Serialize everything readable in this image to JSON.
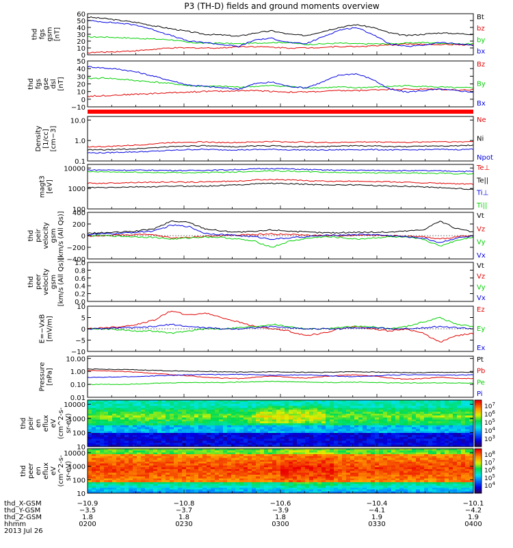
{
  "title": "P3 (TH-D) fields and ground moments overview",
  "colors": {
    "black": "#000000",
    "red": "#e00000",
    "green": "#00d000",
    "blue": "#0000e0"
  },
  "chart_data": [
    {
      "type": "line",
      "ylabel": [
        "thd",
        "fgs",
        "gsm",
        "[nT]"
      ],
      "ylim": [
        0,
        60
      ],
      "yticks": [
        "60",
        "50",
        "40",
        "30",
        "20",
        "10",
        "0"
      ],
      "series": [
        {
          "name": "Bt",
          "color": "black",
          "values": [
            55,
            53,
            50,
            47,
            42,
            38,
            34,
            30,
            29,
            27,
            32,
            35,
            30,
            28,
            34,
            40,
            44,
            40,
            32,
            28,
            30,
            32,
            31,
            30
          ]
        },
        {
          "name": "bz",
          "color": "red",
          "values": [
            3,
            4,
            5,
            6,
            8,
            10,
            10,
            10,
            10,
            12,
            12,
            11,
            10,
            10,
            11,
            12,
            12,
            13,
            14,
            16,
            15,
            15,
            15,
            14
          ]
        },
        {
          "name": "by",
          "color": "green",
          "values": [
            26,
            26,
            25,
            24,
            23,
            22,
            18,
            17,
            17,
            16,
            17,
            18,
            18,
            15,
            16,
            17,
            16,
            16,
            16,
            17,
            18,
            17,
            16,
            16
          ]
        },
        {
          "name": "bx",
          "color": "blue",
          "values": [
            50,
            48,
            46,
            43,
            36,
            28,
            20,
            18,
            15,
            12,
            22,
            24,
            18,
            16,
            26,
            36,
            40,
            30,
            16,
            12,
            14,
            18,
            16,
            14
          ]
        }
      ]
    },
    {
      "type": "line",
      "ylabel": [
        "thd",
        "fgs",
        "gse",
        "dsl",
        "[nT]"
      ],
      "ylim": [
        -15,
        50
      ],
      "yticks": [
        "50",
        "40",
        "30",
        "20",
        "10",
        "0",
        "−10"
      ],
      "series": [
        {
          "name": "Bz",
          "color": "red",
          "values": [
            0,
            1,
            2,
            3,
            4,
            5,
            6,
            7,
            7,
            8,
            8,
            7,
            6,
            6,
            7,
            8,
            8,
            9,
            10,
            10,
            10,
            10,
            9,
            9
          ]
        },
        {
          "name": "By",
          "color": "green",
          "values": [
            25,
            26,
            24,
            22,
            20,
            18,
            15,
            14,
            14,
            13,
            14,
            15,
            14,
            12,
            12,
            13,
            12,
            13,
            14,
            15,
            14,
            13,
            12,
            12
          ]
        },
        {
          "name": "Bx",
          "color": "blue",
          "values": [
            42,
            40,
            38,
            34,
            28,
            22,
            16,
            14,
            12,
            10,
            18,
            20,
            14,
            12,
            20,
            30,
            32,
            24,
            10,
            6,
            8,
            10,
            8,
            6
          ]
        }
      ]
    },
    {
      "type": "line",
      "ylabel": [
        "Density",
        "[1/cc]",
        "[cm−3]"
      ],
      "ylim": [
        0.1,
        15
      ],
      "log": true,
      "yticks": [
        "10.0",
        "1.0",
        "0.1"
      ],
      "series": [
        {
          "name": "Ne",
          "color": "red",
          "values": [
            0.5,
            0.5,
            0.55,
            0.6,
            0.7,
            0.8,
            0.85,
            0.85,
            0.8,
            0.8,
            0.85,
            0.9,
            0.85,
            0.85,
            0.8,
            0.8,
            0.85,
            0.85,
            0.85,
            0.8,
            0.85,
            0.9,
            0.85,
            0.9
          ]
        },
        {
          "name": "Ni",
          "color": "black",
          "values": [
            0.35,
            0.35,
            0.37,
            0.4,
            0.45,
            0.5,
            0.55,
            0.55,
            0.5,
            0.5,
            0.55,
            0.55,
            0.5,
            0.5,
            0.5,
            0.55,
            0.55,
            0.55,
            0.5,
            0.5,
            0.55,
            0.55,
            0.55,
            0.6
          ]
        },
        {
          "name": "Npot",
          "color": "blue",
          "values": [
            0.25,
            0.25,
            0.27,
            0.28,
            0.3,
            0.33,
            0.36,
            0.37,
            0.35,
            0.35,
            0.36,
            0.37,
            0.35,
            0.35,
            0.34,
            0.35,
            0.36,
            0.36,
            0.35,
            0.34,
            0.36,
            0.37,
            0.36,
            0.38
          ]
        }
      ]
    },
    {
      "type": "line",
      "ylabel": [
        "magt3",
        "[eV]"
      ],
      "ylim": [
        100,
        15000
      ],
      "log": true,
      "yticks": [
        "10000",
        "1000",
        "100"
      ],
      "series": [
        {
          "name": "Te⊥",
          "color": "red",
          "values": [
            1800,
            1800,
            1900,
            2000,
            2000,
            2100,
            2000,
            2100,
            2200,
            2300,
            2600,
            2800,
            2600,
            2400,
            2300,
            2200,
            2300,
            2200,
            2100,
            2000,
            1900,
            1800,
            1700,
            1600
          ]
        },
        {
          "name": "Te||",
          "color": "black",
          "values": [
            1100,
            1100,
            1150,
            1200,
            1200,
            1300,
            1300,
            1300,
            1400,
            1500,
            1700,
            1800,
            1700,
            1600,
            1500,
            1500,
            1500,
            1400,
            1300,
            1300,
            1200,
            1100,
            1000,
            900
          ]
        },
        {
          "name": "Ti⊥",
          "color": "blue",
          "values": [
            8000,
            8000,
            7900,
            7800,
            7800,
            7600,
            7500,
            7800,
            8000,
            8500,
            9000,
            9500,
            9000,
            8500,
            8000,
            7800,
            7800,
            7600,
            7500,
            7400,
            7300,
            7200,
            7000,
            6800
          ]
        },
        {
          "name": "Ti||",
          "color": "green",
          "values": [
            6500,
            6500,
            6300,
            6200,
            6000,
            6000,
            5900,
            6000,
            6200,
            6500,
            7000,
            7300,
            7000,
            6600,
            6300,
            6000,
            6000,
            5800,
            5700,
            5600,
            5500,
            5500,
            5300,
            5200
          ]
        }
      ]
    },
    {
      "type": "line",
      "ylabel": [
        "thd",
        "peir",
        "velocity",
        "gsm",
        "[km/s (All Qs)]"
      ],
      "ylim": [
        -400,
        400
      ],
      "yticks": [
        "400",
        "200",
        "0",
        "−200",
        "−400"
      ],
      "series": [
        {
          "name": "Vt",
          "color": "black",
          "values": [
            40,
            50,
            60,
            80,
            120,
            250,
            230,
            120,
            80,
            60,
            70,
            100,
            80,
            60,
            50,
            50,
            60,
            60,
            60,
            80,
            100,
            250,
            120,
            60
          ]
        },
        {
          "name": "Vz",
          "color": "red",
          "values": [
            -10,
            0,
            10,
            20,
            10,
            -40,
            -30,
            -10,
            0,
            10,
            20,
            30,
            20,
            10,
            0,
            0,
            10,
            10,
            0,
            -10,
            -20,
            -60,
            -20,
            0
          ]
        },
        {
          "name": "Vy",
          "color": "green",
          "values": [
            0,
            0,
            -10,
            -20,
            -30,
            -60,
            -40,
            -20,
            -30,
            -60,
            -100,
            -200,
            -100,
            -50,
            -20,
            -30,
            -60,
            -40,
            -20,
            -30,
            -60,
            -180,
            -80,
            -20
          ]
        },
        {
          "name": "Vx",
          "color": "blue",
          "values": [
            20,
            30,
            40,
            60,
            80,
            180,
            160,
            40,
            20,
            0,
            -20,
            -60,
            -40,
            -20,
            0,
            10,
            20,
            20,
            0,
            -20,
            -40,
            -120,
            -40,
            -10
          ]
        }
      ]
    },
    {
      "type": "line",
      "ylabel": [
        "thd",
        "peer",
        "velocity",
        "gsm",
        "[km/s (All Qs)]"
      ],
      "ylim": [
        0,
        1
      ],
      "yticks": [
        "1.0",
        "0.8",
        "0.6",
        "0.4",
        "0.2",
        "0.0"
      ],
      "series": [
        {
          "name": "Vt",
          "color": "black",
          "values": []
        },
        {
          "name": "Vz",
          "color": "red",
          "values": []
        },
        {
          "name": "Vy",
          "color": "green",
          "values": []
        },
        {
          "name": "Vx",
          "color": "blue",
          "values": []
        }
      ]
    },
    {
      "type": "line",
      "ylabel": [
        "E=−VxB",
        "[mV/m]"
      ],
      "ylim": [
        -10,
        10
      ],
      "yticks": [
        "10",
        "5",
        "0",
        "−5",
        "−10"
      ],
      "series": [
        {
          "name": "Ez",
          "color": "red",
          "values": [
            0,
            0.5,
            1,
            2,
            4,
            8,
            6,
            7,
            5,
            3,
            1,
            0,
            -1,
            -3,
            -2,
            0,
            1,
            0,
            -1,
            0,
            -2,
            -6,
            -3,
            -2
          ]
        },
        {
          "name": "Ey",
          "color": "green",
          "values": [
            0,
            0,
            -0.5,
            -1,
            -1,
            -2,
            -1,
            0,
            0,
            0.5,
            1,
            2,
            1,
            0,
            0,
            0.5,
            1,
            1,
            0,
            1,
            3,
            5,
            2,
            1
          ]
        },
        {
          "name": "Ex",
          "color": "blue",
          "values": [
            0,
            0,
            0.5,
            0.5,
            1,
            2,
            1,
            0.5,
            0,
            0,
            0.5,
            1,
            0.5,
            0,
            0,
            0,
            0.5,
            0.5,
            0,
            0,
            0.5,
            1,
            0.5,
            0
          ]
        }
      ]
    },
    {
      "type": "line",
      "ylabel": [
        "Pressure",
        "[nPa]"
      ],
      "ylim": [
        0.01,
        15
      ],
      "log": true,
      "yticks": [
        "10.00",
        "1.00",
        "0.10",
        "0.01"
      ],
      "series": [
        {
          "name": "Pt",
          "color": "black",
          "values": [
            1.5,
            1.45,
            1.4,
            1.3,
            1.2,
            1.1,
            1.05,
            1.0,
            0.95,
            0.9,
            0.9,
            0.95,
            0.9,
            0.85,
            0.85,
            0.9,
            0.95,
            0.9,
            0.85,
            0.8,
            0.8,
            0.85,
            0.85,
            0.85
          ]
        },
        {
          "name": "Pb",
          "color": "red",
          "values": [
            1.2,
            1.1,
            1.0,
            0.85,
            0.7,
            0.55,
            0.45,
            0.35,
            0.3,
            0.28,
            0.35,
            0.45,
            0.35,
            0.3,
            0.4,
            0.5,
            0.55,
            0.45,
            0.3,
            0.25,
            0.28,
            0.35,
            0.3,
            0.28
          ]
        },
        {
          "name": "Pe",
          "color": "green",
          "values": [
            0.1,
            0.1,
            0.1,
            0.11,
            0.12,
            0.13,
            0.14,
            0.14,
            0.14,
            0.15,
            0.16,
            0.17,
            0.16,
            0.15,
            0.14,
            0.14,
            0.15,
            0.14,
            0.13,
            0.13,
            0.13,
            0.13,
            0.13,
            0.12
          ]
        },
        {
          "name": "Pi",
          "color": "blue",
          "values": [
            0.35,
            0.35,
            0.38,
            0.4,
            0.45,
            0.5,
            0.55,
            0.58,
            0.58,
            0.6,
            0.55,
            0.5,
            0.52,
            0.55,
            0.48,
            0.42,
            0.4,
            0.45,
            0.52,
            0.55,
            0.55,
            0.52,
            0.52,
            0.55
          ]
        }
      ]
    },
    {
      "type": "heatmap",
      "ylabel": [
        "thd",
        "peir",
        "en",
        "eflux",
        "eV",
        "(cm^2-s-",
        "sr-eV)"
      ],
      "ylim": [
        10,
        20000
      ],
      "log": true,
      "yticks": [
        "10000",
        "1000",
        "100",
        "10"
      ],
      "colorbar_ticks": [
        "10^7",
        "10^6",
        "10^5",
        "10^4",
        "10^3"
      ]
    },
    {
      "type": "heatmap",
      "ylabel": [
        "thd",
        "peer",
        "en",
        "eflux",
        "eV",
        "(cm^2-s-",
        "sr-eV)"
      ],
      "ylim": [
        10,
        20000
      ],
      "log": true,
      "yticks": [
        "10000",
        "1000",
        "100",
        "10"
      ],
      "colorbar_ticks": [
        "10^8",
        "10^7",
        "10^6",
        "10^5",
        "10^4"
      ]
    }
  ],
  "xaxis": {
    "tick_columns": [
      {
        "x_gsm": "−10.9",
        "y_gsm": "−3.5",
        "z_gsm": "1.8",
        "hhmm": "0200"
      },
      {
        "x_gsm": "−10.8",
        "y_gsm": "−3.7",
        "z_gsm": "1.8",
        "hhmm": "0230"
      },
      {
        "x_gsm": "−10.6",
        "y_gsm": "−3.9",
        "z_gsm": "1.8",
        "hhmm": "0300"
      },
      {
        "x_gsm": "−10.4",
        "y_gsm": "−4.1",
        "z_gsm": "1.9",
        "hhmm": "0330"
      },
      {
        "x_gsm": "−10.1",
        "y_gsm": "−4.2",
        "z_gsm": "1.9",
        "hhmm": "0400"
      }
    ],
    "row_labels": [
      "thd_X-GSM",
      "thd_Y-GSM",
      "thd_Z-GSM",
      "hhmm"
    ],
    "date": "2013 Jul 26"
  }
}
